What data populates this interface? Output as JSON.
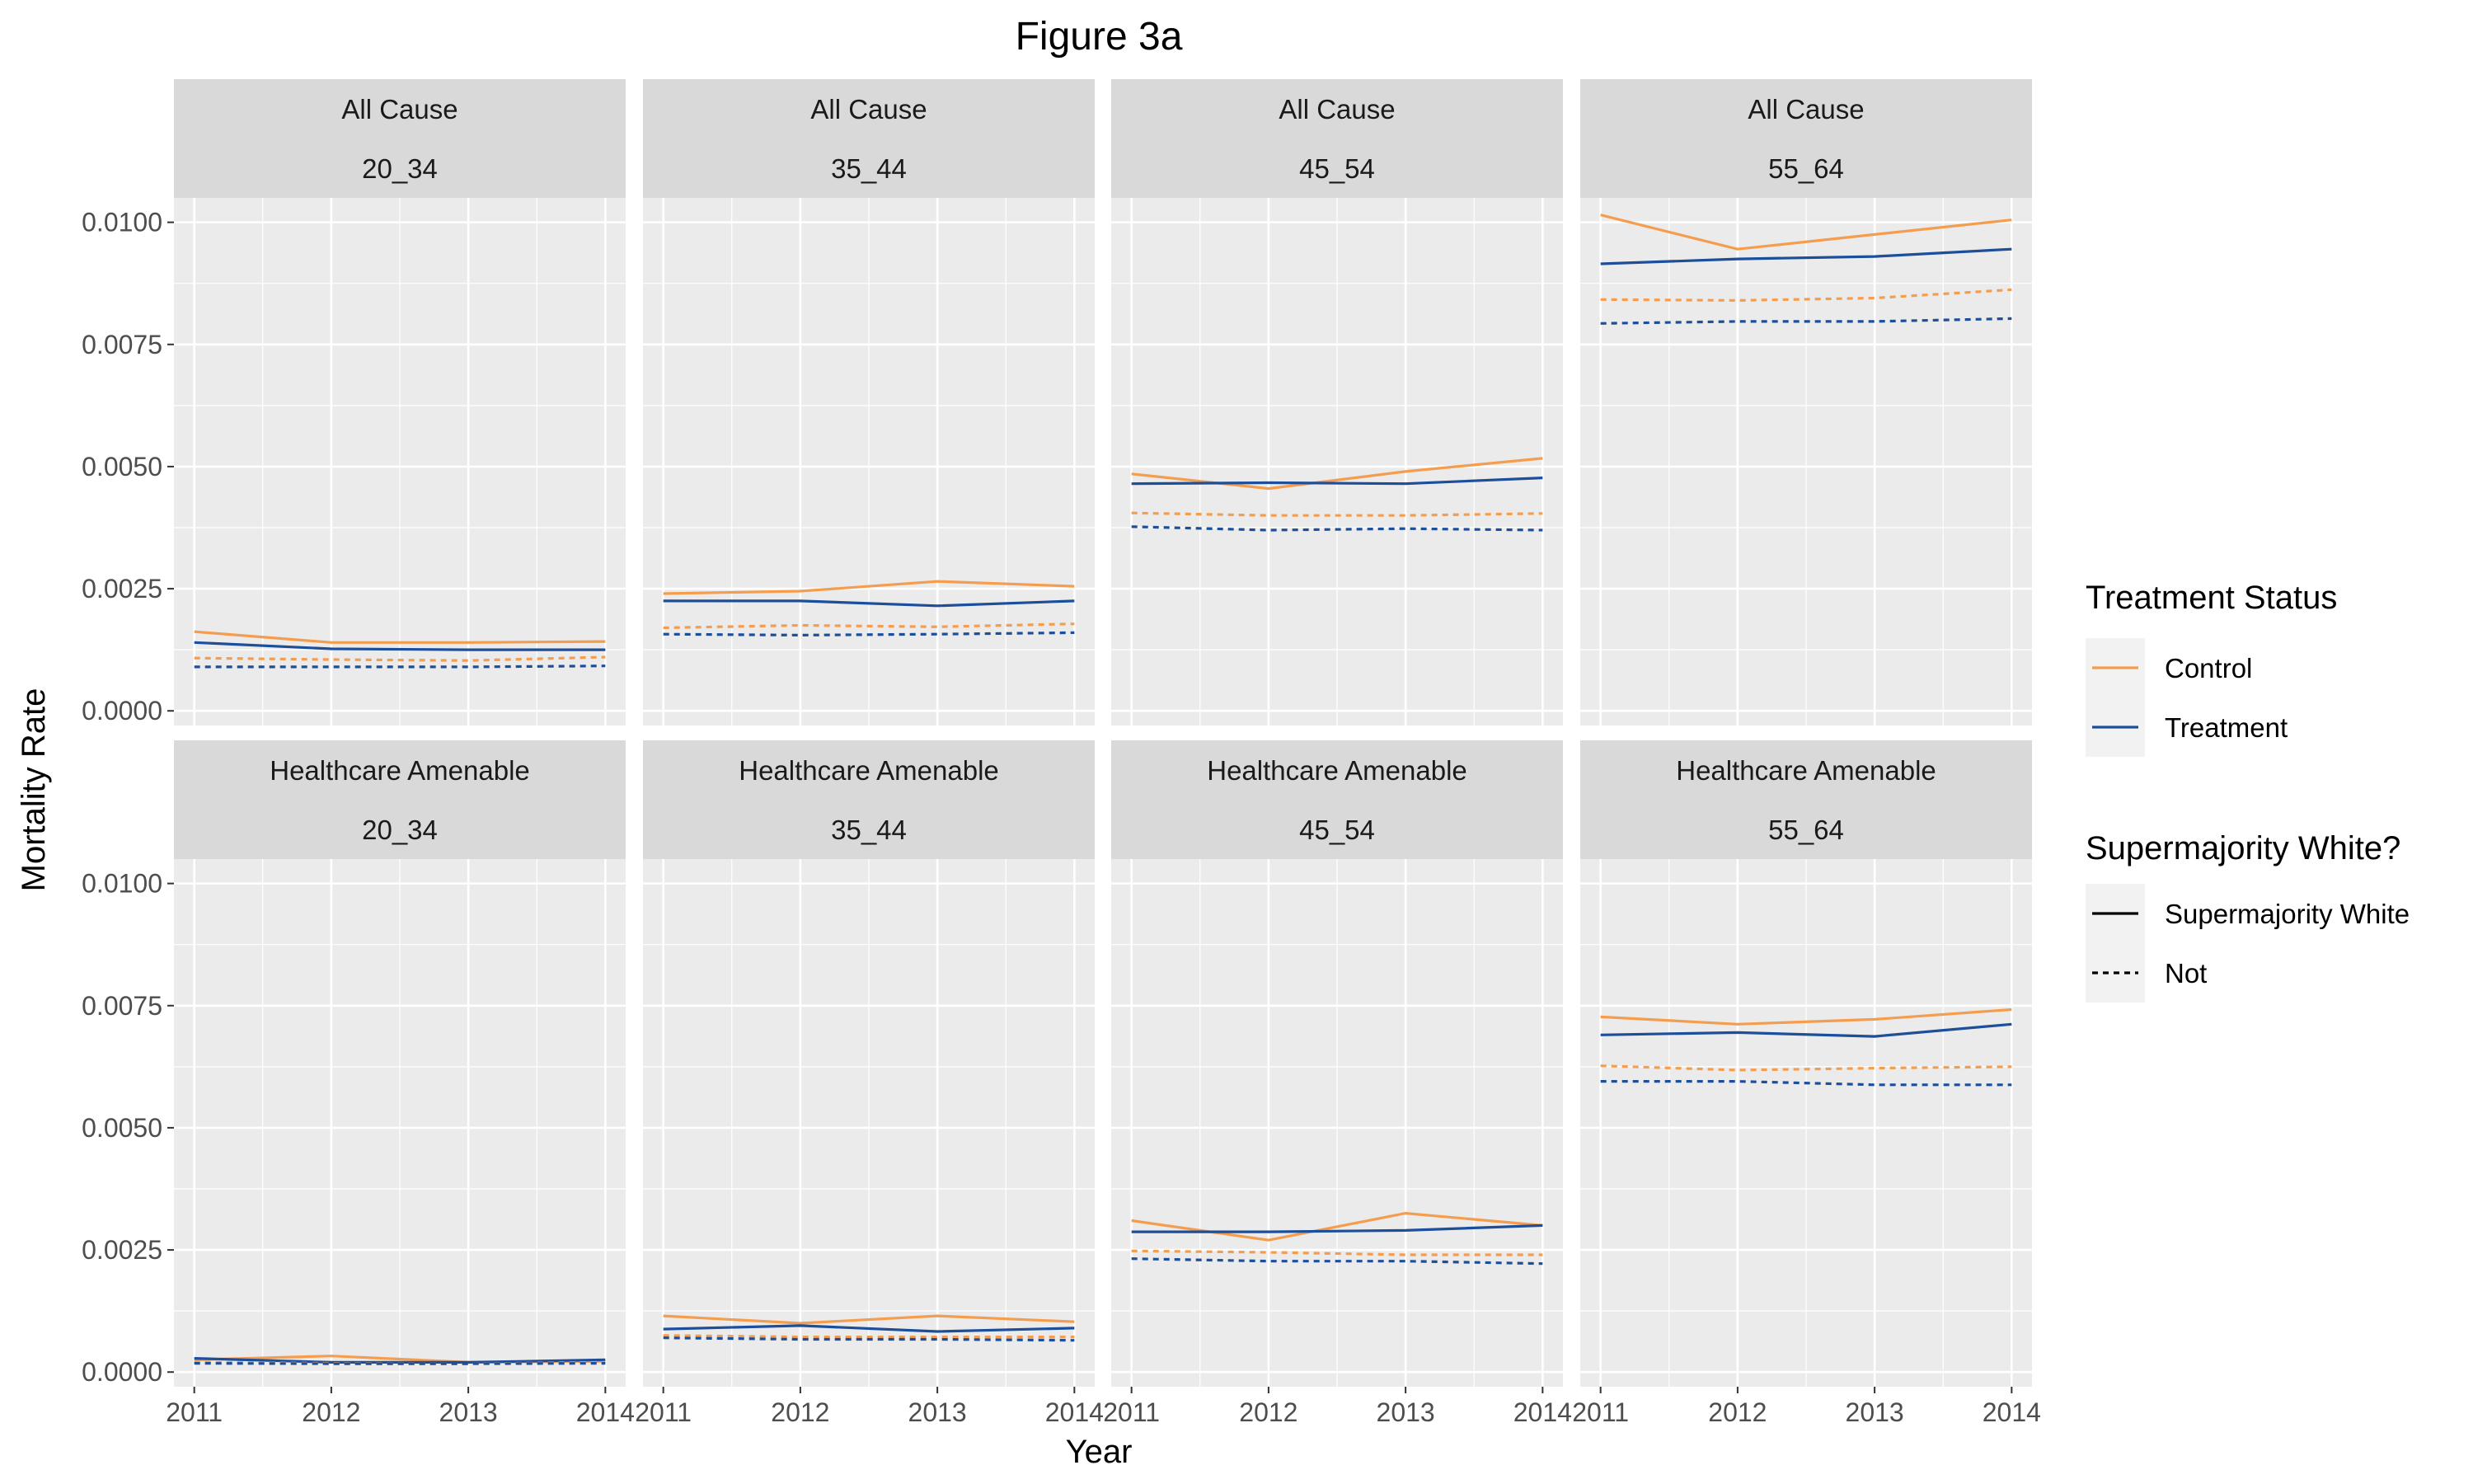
{
  "chart_data": {
    "type": "line",
    "title": "Figure 3a",
    "xlabel": "Year",
    "ylabel": "Mortality Rate",
    "x": [
      2011,
      2012,
      2013,
      2014
    ],
    "x_tick_labels": [
      "2011",
      "2012",
      "2013",
      "2014"
    ],
    "ylim": [
      -0.0003,
      0.0105
    ],
    "y_ticks": [
      0.0,
      0.0025,
      0.005,
      0.0075,
      0.01
    ],
    "y_tick_labels": [
      "0.0000",
      "0.0025",
      "0.0050",
      "0.0075",
      "0.0100"
    ],
    "grid": true,
    "facet_rows": [
      "All Cause",
      "Healthcare Amenable"
    ],
    "facet_cols": [
      "20_34",
      "35_44",
      "45_54",
      "55_64"
    ],
    "colors": {
      "Control": "#F59D4F",
      "Treatment": "#1C4E9A"
    },
    "legends": [
      {
        "title": "Treatment Status",
        "entries": [
          "Control",
          "Treatment"
        ]
      },
      {
        "title": "Supermajority White?",
        "entries": [
          "Supermajority White",
          "Not"
        ]
      }
    ],
    "legend_position": "right",
    "panels": [
      {
        "row": 0,
        "col": 0,
        "series": [
          {
            "treatment": "Control",
            "group": "Supermajority White",
            "values": [
              0.00162,
              0.0014,
              0.0014,
              0.00142
            ]
          },
          {
            "treatment": "Treatment",
            "group": "Supermajority White",
            "values": [
              0.0014,
              0.00127,
              0.00125,
              0.00125
            ]
          },
          {
            "treatment": "Control",
            "group": "Not",
            "values": [
              0.00108,
              0.00105,
              0.00103,
              0.0011
            ]
          },
          {
            "treatment": "Treatment",
            "group": "Not",
            "values": [
              0.0009,
              0.0009,
              0.0009,
              0.00092
            ]
          }
        ]
      },
      {
        "row": 0,
        "col": 1,
        "series": [
          {
            "treatment": "Control",
            "group": "Supermajority White",
            "values": [
              0.0024,
              0.00245,
              0.00265,
              0.00255
            ]
          },
          {
            "treatment": "Treatment",
            "group": "Supermajority White",
            "values": [
              0.00225,
              0.00225,
              0.00215,
              0.00225
            ]
          },
          {
            "treatment": "Control",
            "group": "Not",
            "values": [
              0.0017,
              0.00175,
              0.00172,
              0.00178
            ]
          },
          {
            "treatment": "Treatment",
            "group": "Not",
            "values": [
              0.00157,
              0.00155,
              0.00157,
              0.0016
            ]
          }
        ]
      },
      {
        "row": 0,
        "col": 2,
        "series": [
          {
            "treatment": "Control",
            "group": "Supermajority White",
            "values": [
              0.00485,
              0.00455,
              0.0049,
              0.00517
            ]
          },
          {
            "treatment": "Treatment",
            "group": "Supermajority White",
            "values": [
              0.00465,
              0.00467,
              0.00465,
              0.00477
            ]
          },
          {
            "treatment": "Control",
            "group": "Not",
            "values": [
              0.00405,
              0.004,
              0.004,
              0.00404
            ]
          },
          {
            "treatment": "Treatment",
            "group": "Not",
            "values": [
              0.00377,
              0.0037,
              0.00373,
              0.0037
            ]
          }
        ]
      },
      {
        "row": 0,
        "col": 3,
        "series": [
          {
            "treatment": "Control",
            "group": "Supermajority White",
            "values": [
              0.01015,
              0.00945,
              0.00975,
              0.01005
            ]
          },
          {
            "treatment": "Treatment",
            "group": "Supermajority White",
            "values": [
              0.00915,
              0.00925,
              0.0093,
              0.00945
            ]
          },
          {
            "treatment": "Control",
            "group": "Not",
            "values": [
              0.00842,
              0.0084,
              0.00845,
              0.00862
            ]
          },
          {
            "treatment": "Treatment",
            "group": "Not",
            "values": [
              0.00793,
              0.00797,
              0.00797,
              0.00803
            ]
          }
        ]
      },
      {
        "row": 1,
        "col": 0,
        "series": [
          {
            "treatment": "Control",
            "group": "Supermajority White",
            "values": [
              0.00025,
              0.00033,
              0.0002,
              0.00022
            ]
          },
          {
            "treatment": "Treatment",
            "group": "Supermajority White",
            "values": [
              0.00028,
              0.0002,
              0.0002,
              0.00025
            ]
          },
          {
            "treatment": "Control",
            "group": "Not",
            "values": [
              0.0002,
              0.00018,
              0.00017,
              0.0002
            ]
          },
          {
            "treatment": "Treatment",
            "group": "Not",
            "values": [
              0.00018,
              0.00017,
              0.00017,
              0.00018
            ]
          }
        ]
      },
      {
        "row": 1,
        "col": 1,
        "series": [
          {
            "treatment": "Control",
            "group": "Supermajority White",
            "values": [
              0.00115,
              0.001,
              0.00115,
              0.00103
            ]
          },
          {
            "treatment": "Treatment",
            "group": "Supermajority White",
            "values": [
              0.00088,
              0.00095,
              0.00083,
              0.0009
            ]
          },
          {
            "treatment": "Control",
            "group": "Not",
            "values": [
              0.00075,
              0.00072,
              0.00072,
              0.00072
            ]
          },
          {
            "treatment": "Treatment",
            "group": "Not",
            "values": [
              0.0007,
              0.00067,
              0.00067,
              0.00065
            ]
          }
        ]
      },
      {
        "row": 1,
        "col": 2,
        "series": [
          {
            "treatment": "Control",
            "group": "Supermajority White",
            "values": [
              0.0031,
              0.0027,
              0.00325,
              0.003
            ]
          },
          {
            "treatment": "Treatment",
            "group": "Supermajority White",
            "values": [
              0.00287,
              0.00287,
              0.0029,
              0.003
            ]
          },
          {
            "treatment": "Control",
            "group": "Not",
            "values": [
              0.00248,
              0.00245,
              0.0024,
              0.0024
            ]
          },
          {
            "treatment": "Treatment",
            "group": "Not",
            "values": [
              0.00232,
              0.00227,
              0.00227,
              0.00222
            ]
          }
        ]
      },
      {
        "row": 1,
        "col": 3,
        "series": [
          {
            "treatment": "Control",
            "group": "Supermajority White",
            "values": [
              0.00727,
              0.00712,
              0.00722,
              0.00742
            ]
          },
          {
            "treatment": "Treatment",
            "group": "Supermajority White",
            "values": [
              0.0069,
              0.00695,
              0.00687,
              0.00712
            ]
          },
          {
            "treatment": "Control",
            "group": "Not",
            "values": [
              0.00627,
              0.00618,
              0.00622,
              0.00625
            ]
          },
          {
            "treatment": "Treatment",
            "group": "Not",
            "values": [
              0.00595,
              0.00595,
              0.00588,
              0.00588
            ]
          }
        ]
      }
    ]
  }
}
